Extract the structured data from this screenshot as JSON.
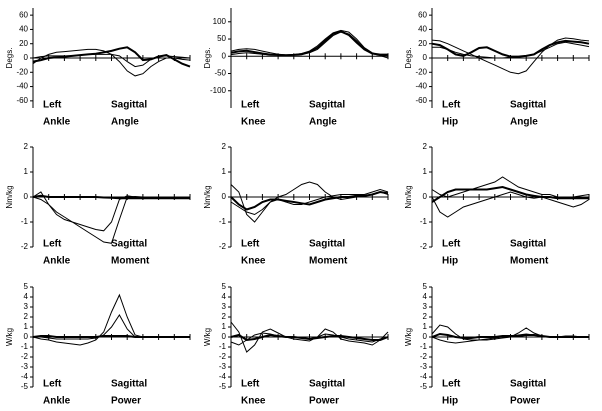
{
  "chart_data": [
    {
      "type": "line",
      "ylabel": "Degs.",
      "side": "Left",
      "joint": "Ankle",
      "plane": "Sagittal",
      "measure": "Angle",
      "xlim": [
        0,
        100
      ],
      "xticks": [
        0,
        10,
        20,
        30,
        40,
        50,
        60,
        70,
        80,
        90,
        100
      ],
      "ylim": [
        -70,
        70
      ],
      "yticks": [
        -60,
        -40,
        -20,
        0,
        20,
        40,
        60
      ],
      "x": [
        0,
        5,
        10,
        15,
        20,
        25,
        30,
        35,
        40,
        45,
        50,
        55,
        60,
        65,
        70,
        75,
        80,
        85,
        90,
        95,
        100
      ],
      "series": [
        {
          "color": "#000000",
          "line_width": 2,
          "values": [
            -5,
            -3,
            0,
            1,
            2,
            3,
            4,
            5,
            6,
            8,
            10,
            13,
            15,
            8,
            -3,
            -2,
            2,
            4,
            -2,
            -8,
            -12
          ]
        },
        {
          "color": "#000000",
          "line_width": 1,
          "values": [
            -8,
            0,
            5,
            8,
            9,
            10,
            11,
            12,
            12,
            10,
            5,
            -5,
            -18,
            -25,
            -22,
            -12,
            -5,
            0,
            0,
            -2,
            -3
          ]
        },
        {
          "color": "#000000",
          "line_width": 1,
          "values": [
            0,
            2,
            3,
            3,
            3,
            3,
            4,
            5,
            5,
            5,
            5,
            3,
            -5,
            -12,
            -10,
            -2,
            3,
            3,
            2,
            1,
            0
          ]
        }
      ]
    },
    {
      "type": "line",
      "ylabel": "Degs.",
      "side": "Left",
      "joint": "Knee",
      "plane": "Sagittal",
      "measure": "Angle",
      "xlim": [
        0,
        100
      ],
      "xticks": [
        0,
        10,
        20,
        30,
        40,
        50,
        60,
        70,
        80,
        90,
        100
      ],
      "ylim": [
        -150,
        140
      ],
      "yticks": [
        -100,
        -50,
        0,
        50,
        100
      ],
      "x": [
        0,
        5,
        10,
        15,
        20,
        25,
        30,
        35,
        40,
        45,
        50,
        55,
        60,
        65,
        70,
        75,
        80,
        85,
        90,
        95,
        100
      ],
      "series": [
        {
          "color": "#000000",
          "line_width": 2,
          "values": [
            10,
            14,
            16,
            12,
            8,
            5,
            4,
            3,
            4,
            6,
            12,
            25,
            45,
            65,
            72,
            62,
            40,
            20,
            8,
            5,
            5
          ]
        },
        {
          "color": "#000000",
          "line_width": 1,
          "values": [
            15,
            20,
            22,
            20,
            15,
            10,
            6,
            4,
            5,
            8,
            15,
            30,
            50,
            68,
            75,
            70,
            50,
            25,
            10,
            3,
            0
          ]
        },
        {
          "color": "#000000",
          "line_width": 1,
          "values": [
            5,
            8,
            10,
            8,
            6,
            4,
            3,
            3,
            4,
            6,
            10,
            20,
            40,
            60,
            70,
            65,
            45,
            22,
            8,
            2,
            -5
          ]
        }
      ]
    },
    {
      "type": "line",
      "ylabel": "Degs.",
      "side": "Left",
      "joint": "Hip",
      "plane": "Sagittal",
      "measure": "Angle",
      "xlim": [
        0,
        100
      ],
      "xticks": [
        0,
        10,
        20,
        30,
        40,
        50,
        60,
        70,
        80,
        90,
        100
      ],
      "ylim": [
        -70,
        70
      ],
      "yticks": [
        -60,
        -40,
        -20,
        0,
        20,
        40,
        60
      ],
      "x": [
        0,
        5,
        10,
        15,
        20,
        25,
        30,
        35,
        40,
        45,
        50,
        55,
        60,
        65,
        70,
        75,
        80,
        85,
        90,
        95,
        100
      ],
      "series": [
        {
          "color": "#000000",
          "line_width": 2,
          "values": [
            20,
            18,
            12,
            5,
            3,
            8,
            14,
            15,
            10,
            5,
            2,
            2,
            3,
            5,
            12,
            18,
            22,
            24,
            23,
            22,
            20
          ]
        },
        {
          "color": "#000000",
          "line_width": 1,
          "values": [
            25,
            24,
            20,
            15,
            10,
            5,
            0,
            -5,
            -10,
            -15,
            -20,
            -22,
            -18,
            -5,
            8,
            18,
            25,
            28,
            27,
            25,
            24
          ]
        },
        {
          "color": "#000000",
          "line_width": 1,
          "values": [
            15,
            15,
            12,
            8,
            5,
            3,
            2,
            1,
            0,
            0,
            1,
            2,
            3,
            5,
            10,
            15,
            20,
            22,
            20,
            18,
            16
          ]
        }
      ]
    },
    {
      "type": "line",
      "ylabel": "Nm/kg",
      "side": "Left",
      "joint": "Ankle",
      "plane": "Sagittal",
      "measure": "Moment",
      "xlim": [
        0,
        100
      ],
      "xticks": [
        0,
        10,
        20,
        30,
        40,
        50,
        60,
        70,
        80,
        90,
        100
      ],
      "ylim": [
        -2,
        2
      ],
      "yticks": [
        -2,
        -1,
        0,
        1,
        2
      ],
      "x": [
        0,
        5,
        10,
        15,
        20,
        25,
        30,
        35,
        40,
        45,
        50,
        55,
        60,
        65,
        70,
        75,
        80,
        85,
        90,
        95,
        100
      ],
      "series": [
        {
          "color": "#000000",
          "line_width": 2,
          "values": [
            0,
            0.05,
            0,
            0,
            0,
            0,
            0,
            0,
            0,
            -0.02,
            -0.03,
            -0.05,
            -0.05,
            -0.05,
            -0.05,
            -0.05,
            -0.05,
            -0.05,
            -0.05,
            -0.05,
            -0.05
          ]
        },
        {
          "color": "#000000",
          "line_width": 1,
          "values": [
            0,
            0.2,
            -0.3,
            -0.7,
            -0.9,
            -1.0,
            -1.1,
            -1.2,
            -1.3,
            -1.35,
            -1.0,
            -0.1,
            0.05,
            0,
            0,
            0,
            0,
            -0.02,
            -0.05,
            -0.05,
            -0.05
          ]
        },
        {
          "color": "#000000",
          "line_width": 1,
          "values": [
            0,
            -0.1,
            -0.3,
            -0.6,
            -0.8,
            -1.0,
            -1.2,
            -1.4,
            -1.6,
            -1.8,
            -1.85,
            -0.9,
            0,
            0.02,
            0,
            0,
            0,
            0,
            0,
            0,
            0
          ]
        }
      ]
    },
    {
      "type": "line",
      "ylabel": "Nm/kg",
      "side": "Left",
      "joint": "Knee",
      "plane": "Sagittal",
      "measure": "Moment",
      "xlim": [
        0,
        100
      ],
      "xticks": [
        0,
        10,
        20,
        30,
        40,
        50,
        60,
        70,
        80,
        90,
        100
      ],
      "ylim": [
        -2,
        2
      ],
      "yticks": [
        -2,
        -1,
        0,
        1,
        2
      ],
      "x": [
        0,
        5,
        10,
        15,
        20,
        25,
        30,
        35,
        40,
        45,
        50,
        55,
        60,
        65,
        70,
        75,
        80,
        85,
        90,
        95,
        100
      ],
      "series": [
        {
          "color": "#000000",
          "line_width": 2,
          "values": [
            0,
            -0.3,
            -0.5,
            -0.4,
            -0.2,
            -0.1,
            -0.1,
            -0.15,
            -0.2,
            -0.25,
            -0.3,
            -0.2,
            -0.1,
            -0.05,
            0,
            0,
            0.05,
            0.05,
            0.1,
            0.2,
            0.15
          ]
        },
        {
          "color": "#000000",
          "line_width": 1,
          "values": [
            0.5,
            0.2,
            -0.7,
            -1.0,
            -0.6,
            -0.2,
            0,
            0.1,
            0.3,
            0.5,
            0.6,
            0.5,
            0.2,
            0,
            -0.1,
            -0.05,
            0,
            0.05,
            0.1,
            0.2,
            0.1
          ]
        },
        {
          "color": "#000000",
          "line_width": 1,
          "values": [
            -0.2,
            -0.4,
            -0.6,
            -0.7,
            -0.5,
            -0.2,
            -0.1,
            -0.2,
            -0.3,
            -0.3,
            -0.2,
            -0.1,
            0,
            0.05,
            0.1,
            0.1,
            0.1,
            0.1,
            0.2,
            0.3,
            0.2
          ]
        }
      ]
    },
    {
      "type": "line",
      "ylabel": "Nm/kg",
      "side": "Left",
      "joint": "Hip",
      "plane": "Sagittal",
      "measure": "Moment",
      "xlim": [
        0,
        100
      ],
      "xticks": [
        0,
        10,
        20,
        30,
        40,
        50,
        60,
        70,
        80,
        90,
        100
      ],
      "ylim": [
        -2,
        2
      ],
      "yticks": [
        -2,
        -1,
        0,
        1,
        2
      ],
      "x": [
        0,
        5,
        10,
        15,
        20,
        25,
        30,
        35,
        40,
        45,
        50,
        55,
        60,
        65,
        70,
        75,
        80,
        85,
        90,
        95,
        100
      ],
      "series": [
        {
          "color": "#000000",
          "line_width": 2,
          "values": [
            -0.2,
            0,
            0.2,
            0.3,
            0.3,
            0.3,
            0.3,
            0.3,
            0.35,
            0.4,
            0.3,
            0.2,
            0.1,
            0.05,
            0,
            0,
            -0.05,
            -0.05,
            -0.05,
            -0.05,
            -0.05
          ]
        },
        {
          "color": "#000000",
          "line_width": 1,
          "values": [
            0,
            -0.6,
            -0.8,
            -0.6,
            -0.4,
            -0.3,
            -0.2,
            -0.1,
            0,
            0.1,
            0.2,
            0.1,
            0,
            -0.05,
            0,
            -0.1,
            -0.2,
            -0.3,
            -0.4,
            -0.3,
            -0.1
          ]
        },
        {
          "color": "#000000",
          "line_width": 1,
          "values": [
            0.3,
            0.1,
            0,
            0.1,
            0.2,
            0.3,
            0.4,
            0.5,
            0.6,
            0.8,
            0.6,
            0.4,
            0.3,
            0.2,
            0.1,
            0.1,
            0,
            0,
            0,
            0.05,
            0.1
          ]
        }
      ]
    },
    {
      "type": "line",
      "ylabel": "W/kg",
      "side": "Left",
      "joint": "Ankle",
      "plane": "Sagittal",
      "measure": "Power",
      "xlim": [
        0,
        100
      ],
      "xticks": [
        0,
        10,
        20,
        30,
        40,
        50,
        60,
        70,
        80,
        90,
        100
      ],
      "ylim": [
        -5,
        5
      ],
      "yticks": [
        -5,
        -4,
        -3,
        -2,
        -1,
        0,
        1,
        2,
        3,
        4,
        5
      ],
      "x": [
        0,
        5,
        10,
        15,
        20,
        25,
        30,
        35,
        40,
        45,
        50,
        55,
        60,
        65,
        70,
        75,
        80,
        85,
        90,
        95,
        100
      ],
      "series": [
        {
          "color": "#000000",
          "line_width": 2,
          "values": [
            0,
            0.1,
            0.1,
            0,
            0,
            0,
            0,
            0,
            0,
            0.1,
            0.1,
            0.1,
            0.1,
            0,
            0,
            0,
            0,
            0,
            0,
            0,
            0
          ]
        },
        {
          "color": "#000000",
          "line_width": 1,
          "values": [
            0,
            -0.2,
            -0.3,
            -0.5,
            -0.6,
            -0.7,
            -0.8,
            -0.6,
            -0.3,
            0.5,
            2.5,
            4.2,
            2,
            0.2,
            0,
            0,
            0,
            0,
            0,
            0,
            0
          ]
        },
        {
          "color": "#000000",
          "line_width": 1,
          "values": [
            0,
            0,
            -0.1,
            -0.2,
            -0.2,
            -0.2,
            -0.2,
            -0.2,
            -0.1,
            0.2,
            1.0,
            2.2,
            0.8,
            0,
            0,
            0,
            0,
            0,
            0,
            0,
            0
          ]
        }
      ]
    },
    {
      "type": "line",
      "ylabel": "W/kg",
      "side": "Left",
      "joint": "Knee",
      "plane": "Sagittal",
      "measure": "Power",
      "xlim": [
        0,
        100
      ],
      "xticks": [
        0,
        10,
        20,
        30,
        40,
        50,
        60,
        70,
        80,
        90,
        100
      ],
      "ylim": [
        -5,
        5
      ],
      "yticks": [
        -5,
        -4,
        -3,
        -2,
        -1,
        0,
        1,
        2,
        3,
        4,
        5
      ],
      "x": [
        0,
        5,
        10,
        15,
        20,
        25,
        30,
        35,
        40,
        45,
        50,
        55,
        60,
        65,
        70,
        75,
        80,
        85,
        90,
        95,
        100
      ],
      "series": [
        {
          "color": "#000000",
          "line_width": 2,
          "values": [
            0,
            0.2,
            -0.3,
            -0.2,
            0,
            0.2,
            0.1,
            0,
            0,
            -0.1,
            -0.2,
            -0.1,
            0,
            0.1,
            0.1,
            0,
            -0.1,
            -0.2,
            -0.3,
            -0.3,
            0
          ]
        },
        {
          "color": "#000000",
          "line_width": 1,
          "values": [
            1.5,
            0.5,
            -1.5,
            -0.8,
            0.5,
            0.8,
            0.4,
            0,
            -0.2,
            -0.3,
            -0.4,
            0,
            0.8,
            0.5,
            -0.2,
            -0.4,
            -0.5,
            -0.6,
            -0.8,
            -0.3,
            0.5
          ]
        },
        {
          "color": "#000000",
          "line_width": 1,
          "values": [
            -0.5,
            -0.8,
            -0.3,
            0.2,
            0.4,
            0.3,
            0.1,
            0,
            0,
            -0.1,
            -0.2,
            0,
            0.3,
            0.2,
            0,
            -0.2,
            -0.3,
            -0.4,
            -0.5,
            -0.2,
            0
          ]
        }
      ]
    },
    {
      "type": "line",
      "ylabel": "W/kg",
      "side": "Left",
      "joint": "Hip",
      "plane": "Sagittal",
      "measure": "Power",
      "xlim": [
        0,
        100
      ],
      "xticks": [
        0,
        10,
        20,
        30,
        40,
        50,
        60,
        70,
        80,
        90,
        100
      ],
      "ylim": [
        -5,
        5
      ],
      "yticks": [
        -5,
        -4,
        -3,
        -2,
        -1,
        0,
        1,
        2,
        3,
        4,
        5
      ],
      "x": [
        0,
        5,
        10,
        15,
        20,
        25,
        30,
        35,
        40,
        45,
        50,
        55,
        60,
        65,
        70,
        75,
        80,
        85,
        90,
        95,
        100
      ],
      "series": [
        {
          "color": "#000000",
          "line_width": 2,
          "values": [
            0,
            0.3,
            0.2,
            0,
            -0.1,
            -0.1,
            0,
            0,
            0,
            0.1,
            0.1,
            0.1,
            0.2,
            0.2,
            0.1,
            0,
            0,
            0,
            0,
            0,
            0
          ]
        },
        {
          "color": "#000000",
          "line_width": 1,
          "values": [
            0.3,
            1.2,
            1.0,
            0.3,
            -0.2,
            -0.3,
            -0.3,
            -0.3,
            -0.2,
            -0.1,
            0,
            0.4,
            0.9,
            0.4,
            0.1,
            0,
            0,
            0.1,
            0.1,
            0,
            0
          ]
        },
        {
          "color": "#000000",
          "line_width": 1,
          "values": [
            0,
            -0.3,
            -0.5,
            -0.6,
            -0.5,
            -0.4,
            -0.3,
            -0.2,
            -0.1,
            0,
            0.1,
            0.2,
            0.3,
            0.2,
            0.1,
            0,
            0,
            0,
            0,
            0,
            0
          ]
        }
      ]
    }
  ]
}
